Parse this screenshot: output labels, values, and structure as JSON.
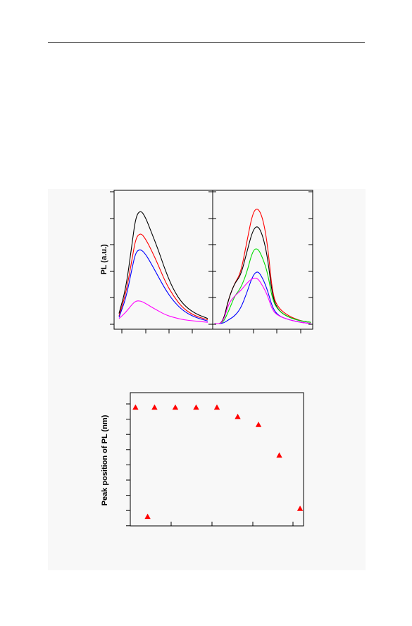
{
  "chart_data": [
    {
      "type": "line",
      "ylabel": "PL (a.u.)",
      "panels": [
        {
          "series": [
            {
              "color": "#000000",
              "values": [
                [
                  0.05,
                  0.08
                ],
                [
                  0.12,
                  0.28
                ],
                [
                  0.18,
                  0.62
                ],
                [
                  0.22,
                  0.85
                ],
                [
                  0.27,
                  0.9
                ],
                [
                  0.32,
                  0.84
                ],
                [
                  0.38,
                  0.72
                ],
                [
                  0.45,
                  0.58
                ],
                [
                  0.52,
                  0.42
                ],
                [
                  0.6,
                  0.27
                ],
                [
                  0.7,
                  0.15
                ],
                [
                  0.82,
                  0.08
                ],
                [
                  0.95,
                  0.04
                ]
              ]
            },
            {
              "color": "#ff0000",
              "values": [
                [
                  0.05,
                  0.06
                ],
                [
                  0.12,
                  0.24
                ],
                [
                  0.18,
                  0.5
                ],
                [
                  0.22,
                  0.68
                ],
                [
                  0.27,
                  0.72
                ],
                [
                  0.32,
                  0.67
                ],
                [
                  0.38,
                  0.58
                ],
                [
                  0.45,
                  0.46
                ],
                [
                  0.52,
                  0.33
                ],
                [
                  0.6,
                  0.22
                ],
                [
                  0.7,
                  0.12
                ],
                [
                  0.82,
                  0.06
                ],
                [
                  0.95,
                  0.03
                ]
              ]
            },
            {
              "color": "#0000ff",
              "values": [
                [
                  0.05,
                  0.05
                ],
                [
                  0.12,
                  0.2
                ],
                [
                  0.18,
                  0.43
                ],
                [
                  0.22,
                  0.57
                ],
                [
                  0.27,
                  0.59
                ],
                [
                  0.32,
                  0.55
                ],
                [
                  0.38,
                  0.47
                ],
                [
                  0.45,
                  0.37
                ],
                [
                  0.52,
                  0.27
                ],
                [
                  0.6,
                  0.18
                ],
                [
                  0.7,
                  0.1
                ],
                [
                  0.82,
                  0.05
                ],
                [
                  0.95,
                  0.02
                ]
              ]
            },
            {
              "color": "#ff00ff",
              "values": [
                [
                  0.05,
                  0.04
                ],
                [
                  0.12,
                  0.09
                ],
                [
                  0.18,
                  0.15
                ],
                [
                  0.22,
                  0.18
                ],
                [
                  0.27,
                  0.18
                ],
                [
                  0.32,
                  0.16
                ],
                [
                  0.38,
                  0.13
                ],
                [
                  0.45,
                  0.1
                ],
                [
                  0.52,
                  0.07
                ],
                [
                  0.6,
                  0.05
                ],
                [
                  0.7,
                  0.03
                ],
                [
                  0.82,
                  0.02
                ],
                [
                  0.95,
                  0.01
                ]
              ]
            }
          ]
        },
        {
          "series": [
            {
              "color": "#ff0000",
              "values": [
                [
                  0.02,
                  0.0
                ],
                [
                  0.1,
                  0.0
                ],
                [
                  0.16,
                  0.2
                ],
                [
                  0.22,
                  0.32
                ],
                [
                  0.28,
                  0.4
                ],
                [
                  0.34,
                  0.64
                ],
                [
                  0.4,
                  0.88
                ],
                [
                  0.45,
                  0.92
                ],
                [
                  0.5,
                  0.84
                ],
                [
                  0.55,
                  0.62
                ],
                [
                  0.6,
                  0.22
                ],
                [
                  0.66,
                  0.12
                ],
                [
                  0.76,
                  0.06
                ],
                [
                  0.88,
                  0.02
                ],
                [
                  0.98,
                  0.01
                ]
              ]
            },
            {
              "color": "#000000",
              "values": [
                [
                  0.02,
                  0.0
                ],
                [
                  0.1,
                  0.0
                ],
                [
                  0.16,
                  0.2
                ],
                [
                  0.22,
                  0.32
                ],
                [
                  0.28,
                  0.38
                ],
                [
                  0.34,
                  0.56
                ],
                [
                  0.4,
                  0.74
                ],
                [
                  0.45,
                  0.78
                ],
                [
                  0.5,
                  0.7
                ],
                [
                  0.55,
                  0.52
                ],
                [
                  0.6,
                  0.2
                ],
                [
                  0.66,
                  0.1
                ],
                [
                  0.76,
                  0.05
                ],
                [
                  0.88,
                  0.02
                ],
                [
                  0.98,
                  0.01
                ]
              ]
            },
            {
              "color": "#00dd00",
              "values": [
                [
                  0.02,
                  0.0
                ],
                [
                  0.1,
                  0.0
                ],
                [
                  0.16,
                  0.1
                ],
                [
                  0.22,
                  0.22
                ],
                [
                  0.28,
                  0.28
                ],
                [
                  0.34,
                  0.4
                ],
                [
                  0.4,
                  0.58
                ],
                [
                  0.45,
                  0.6
                ],
                [
                  0.5,
                  0.52
                ],
                [
                  0.55,
                  0.4
                ],
                [
                  0.6,
                  0.18
                ],
                [
                  0.66,
                  0.1
                ],
                [
                  0.76,
                  0.05
                ],
                [
                  0.88,
                  0.02
                ],
                [
                  0.98,
                  0.01
                ]
              ]
            },
            {
              "color": "#0000ff",
              "values": [
                [
                  0.02,
                  0.0
                ],
                [
                  0.1,
                  0.0
                ],
                [
                  0.16,
                  0.03
                ],
                [
                  0.22,
                  0.06
                ],
                [
                  0.28,
                  0.12
                ],
                [
                  0.34,
                  0.24
                ],
                [
                  0.4,
                  0.38
                ],
                [
                  0.45,
                  0.42
                ],
                [
                  0.5,
                  0.36
                ],
                [
                  0.55,
                  0.26
                ],
                [
                  0.6,
                  0.12
                ],
                [
                  0.66,
                  0.06
                ],
                [
                  0.76,
                  0.03
                ],
                [
                  0.88,
                  0.01
                ],
                [
                  0.98,
                  0.0
                ]
              ]
            },
            {
              "color": "#ff00ff",
              "values": [
                [
                  0.02,
                  0.0
                ],
                [
                  0.1,
                  0.0
                ],
                [
                  0.16,
                  0.16
                ],
                [
                  0.22,
                  0.22
                ],
                [
                  0.28,
                  0.26
                ],
                [
                  0.34,
                  0.32
                ],
                [
                  0.4,
                  0.36
                ],
                [
                  0.45,
                  0.36
                ],
                [
                  0.5,
                  0.3
                ],
                [
                  0.55,
                  0.22
                ],
                [
                  0.6,
                  0.1
                ],
                [
                  0.66,
                  0.06
                ],
                [
                  0.76,
                  0.03
                ],
                [
                  0.88,
                  0.01
                ],
                [
                  0.98,
                  0.0
                ]
              ]
            }
          ]
        }
      ],
      "grid": false
    },
    {
      "type": "scatter",
      "ylabel": "Peak position of PL (nm)",
      "marker": "triangle",
      "color": "#ff0000",
      "x": [
        0.03,
        0.1,
        0.14,
        0.26,
        0.38,
        0.5,
        0.62,
        0.74,
        0.86,
        0.98
      ],
      "y": [
        0.89,
        0.07,
        0.89,
        0.89,
        0.89,
        0.89,
        0.82,
        0.76,
        0.53,
        0.13
      ],
      "grid": false
    }
  ]
}
